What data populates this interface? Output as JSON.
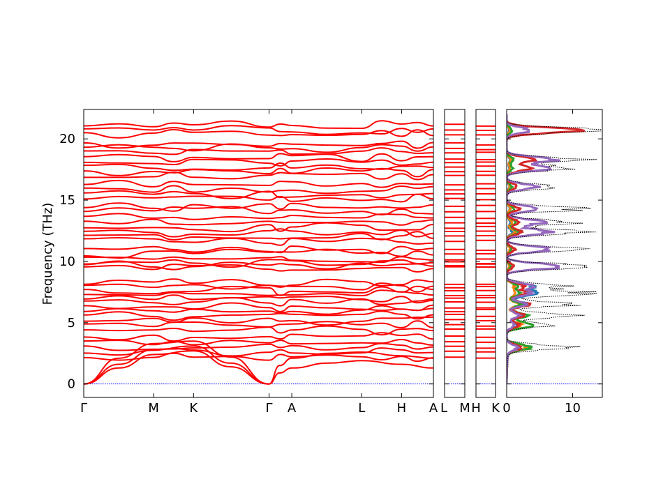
{
  "chart_data": {
    "type": "line",
    "ylabel": "Frequency (THz)",
    "ylim": [
      -1.1,
      22.4
    ],
    "y_ticks": [
      0,
      5,
      10,
      15,
      20
    ],
    "band_color": "#ff0000",
    "zero_line_color": "#0000ff",
    "panels": [
      {
        "id": "main",
        "ticks": [
          {
            "label": "Γ",
            "x": 0.0
          },
          {
            "label": "M",
            "x": 0.2
          },
          {
            "label": "K",
            "x": 0.314
          },
          {
            "label": "Γ",
            "x": 0.53
          },
          {
            "label": "A",
            "x": 0.595
          },
          {
            "label": "L",
            "x": 0.795
          },
          {
            "label": "H",
            "x": 0.909
          },
          {
            "label": "A",
            "x": 1.0
          }
        ],
        "right_label": "L",
        "acoustic": [
          {
            "x": [
              0.0,
              0.1,
              0.2,
              0.314,
              0.42,
              0.53
            ],
            "y": [
              0.0,
              1.3,
              2.4,
              2.7,
              1.4,
              0.0
            ]
          },
          {
            "x": [
              0.0,
              0.1,
              0.2,
              0.314,
              0.42,
              0.53
            ],
            "y": [
              0.0,
              1.6,
              2.8,
              3.1,
              1.7,
              0.0
            ]
          },
          {
            "x": [
              0.0,
              0.1,
              0.2,
              0.314,
              0.42,
              0.53
            ],
            "y": [
              0.0,
              2.1,
              3.3,
              3.5,
              2.2,
              0.0
            ]
          },
          {
            "x": [
              0.53,
              0.56,
              0.595,
              0.7,
              0.795,
              0.909,
              1.0
            ],
            "y": [
              0.0,
              0.9,
              1.3,
              1.7,
              1.9,
              1.6,
              1.3
            ]
          },
          {
            "x": [
              0.53,
              0.56,
              0.595,
              0.7,
              0.795,
              0.909,
              1.0
            ],
            "y": [
              0.0,
              1.5,
              2.1,
              2.5,
              2.6,
              2.3,
              2.1
            ]
          }
        ],
        "band_levels": [
          2.1,
          2.6,
          3.0,
          3.4,
          3.9,
          4.4,
          4.8,
          5.2,
          5.6,
          6.0,
          6.3,
          6.7,
          7.0,
          7.3,
          7.6,
          7.9,
          8.2,
          9.5,
          9.7,
          9.9,
          10.2,
          10.6,
          11.0,
          11.7,
          12.1,
          12.4,
          12.8,
          13.2,
          13.6,
          14.1,
          14.5,
          15.1,
          15.5,
          15.9,
          16.3,
          17.0,
          17.3,
          17.7,
          18.1,
          18.4,
          18.9,
          19.2,
          19.6,
          20.4,
          20.7,
          21.1
        ]
      },
      {
        "id": "L-M",
        "ticks": [
          {
            "label": "L",
            "x": 0
          },
          {
            "label": "M",
            "x": 1
          }
        ]
      },
      {
        "id": "H-K",
        "ticks": [
          {
            "label": "H",
            "x": 0
          },
          {
            "label": "K",
            "x": 1
          }
        ]
      },
      {
        "id": "dos",
        "xlim": [
          0,
          14.5
        ],
        "x_ticks": [
          0,
          10
        ],
        "dos_colors": [
          "#1f77b4",
          "#ff7f0e",
          "#2ca02c",
          "#d62728",
          "#9467bd"
        ],
        "total_color": "#000000",
        "dos_peaks": [
          {
            "f": 3.0,
            "total": 9.5,
            "partials": [
              2.0,
              3.2,
              3.6,
              2.0,
              1.5
            ]
          },
          {
            "f": 4.8,
            "total": 6.5,
            "partials": [
              1.5,
              2.2,
              4.0,
              2.0,
              1.2
            ]
          },
          {
            "f": 5.6,
            "total": 9.8,
            "partials": [
              2.5,
              2.0,
              3.0,
              2.5,
              1.8
            ]
          },
          {
            "f": 6.5,
            "total": 10.5,
            "partials": [
              3.0,
              1.8,
              2.0,
              3.2,
              2.8
            ]
          },
          {
            "f": 7.4,
            "total": 12.0,
            "partials": [
              5.2,
              1.5,
              2.2,
              3.0,
              3.5
            ]
          },
          {
            "f": 8.0,
            "total": 9.0,
            "partials": [
              3.8,
              1.2,
              1.5,
              2.5,
              4.0
            ]
          },
          {
            "f": 9.6,
            "total": 14.0,
            "partials": [
              0.5,
              0.4,
              0.6,
              1.0,
              9.0
            ]
          },
          {
            "f": 11.0,
            "total": 10.5,
            "partials": [
              0.6,
              0.5,
              0.8,
              1.2,
              7.0
            ]
          },
          {
            "f": 12.4,
            "total": 11.8,
            "partials": [
              0.8,
              1.2,
              1.8,
              2.2,
              6.5
            ]
          },
          {
            "f": 13.2,
            "total": 10.0,
            "partials": [
              0.6,
              0.8,
              1.5,
              2.0,
              5.5
            ]
          },
          {
            "f": 14.3,
            "total": 11.5,
            "partials": [
              0.5,
              0.6,
              1.2,
              1.8,
              5.0
            ]
          },
          {
            "f": 16.1,
            "total": 8.0,
            "partials": [
              0.4,
              0.5,
              0.8,
              1.5,
              4.5
            ]
          },
          {
            "f": 17.6,
            "total": 9.5,
            "partials": [
              0.4,
              0.5,
              0.9,
              3.5,
              6.0
            ]
          },
          {
            "f": 18.3,
            "total": 11.0,
            "partials": [
              0.5,
              0.6,
              1.0,
              4.0,
              7.2
            ]
          },
          {
            "f": 20.7,
            "total": 14.2,
            "partials": [
              0.4,
              0.5,
              0.8,
              10.5,
              3.5
            ]
          }
        ]
      }
    ]
  }
}
